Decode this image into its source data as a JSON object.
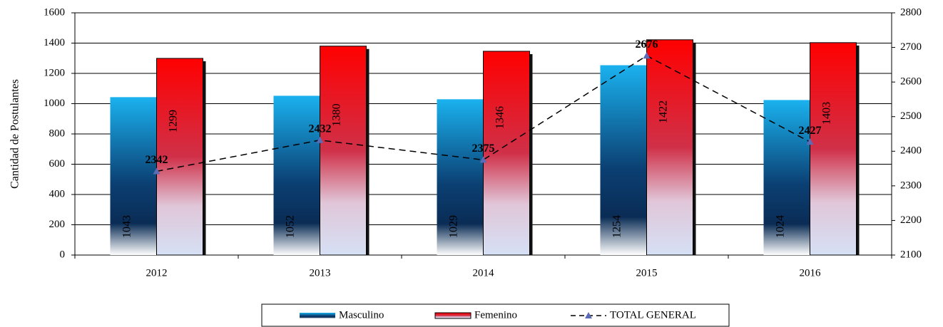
{
  "chart_data": {
    "type": "bar",
    "categories": [
      "2012",
      "2013",
      "2014",
      "2015",
      "2016"
    ],
    "y_label": "Cantidad de Postulantes",
    "ylim": [
      0,
      1600
    ],
    "yticks": [
      0,
      200,
      400,
      600,
      800,
      1000,
      1200,
      1400,
      1600
    ],
    "y2lim": [
      2100,
      2800
    ],
    "y2ticks": [
      2100,
      2200,
      2300,
      2400,
      2500,
      2600,
      2700,
      2800
    ],
    "grid": true,
    "legend": "bottom",
    "series": [
      {
        "name": "Masculino",
        "color": "#1ab2ef",
        "values": [
          1043,
          1052,
          1029,
          1254,
          1024
        ]
      },
      {
        "name": "Femenino",
        "color": "#ff0000",
        "values": [
          1299,
          1380,
          1346,
          1422,
          1403
        ]
      },
      {
        "name": "TOTAL GENERAL",
        "type": "line",
        "axis": "y2",
        "color": "#5b6bb5",
        "values": [
          2342,
          2432,
          2375,
          2676,
          2427
        ]
      }
    ]
  }
}
